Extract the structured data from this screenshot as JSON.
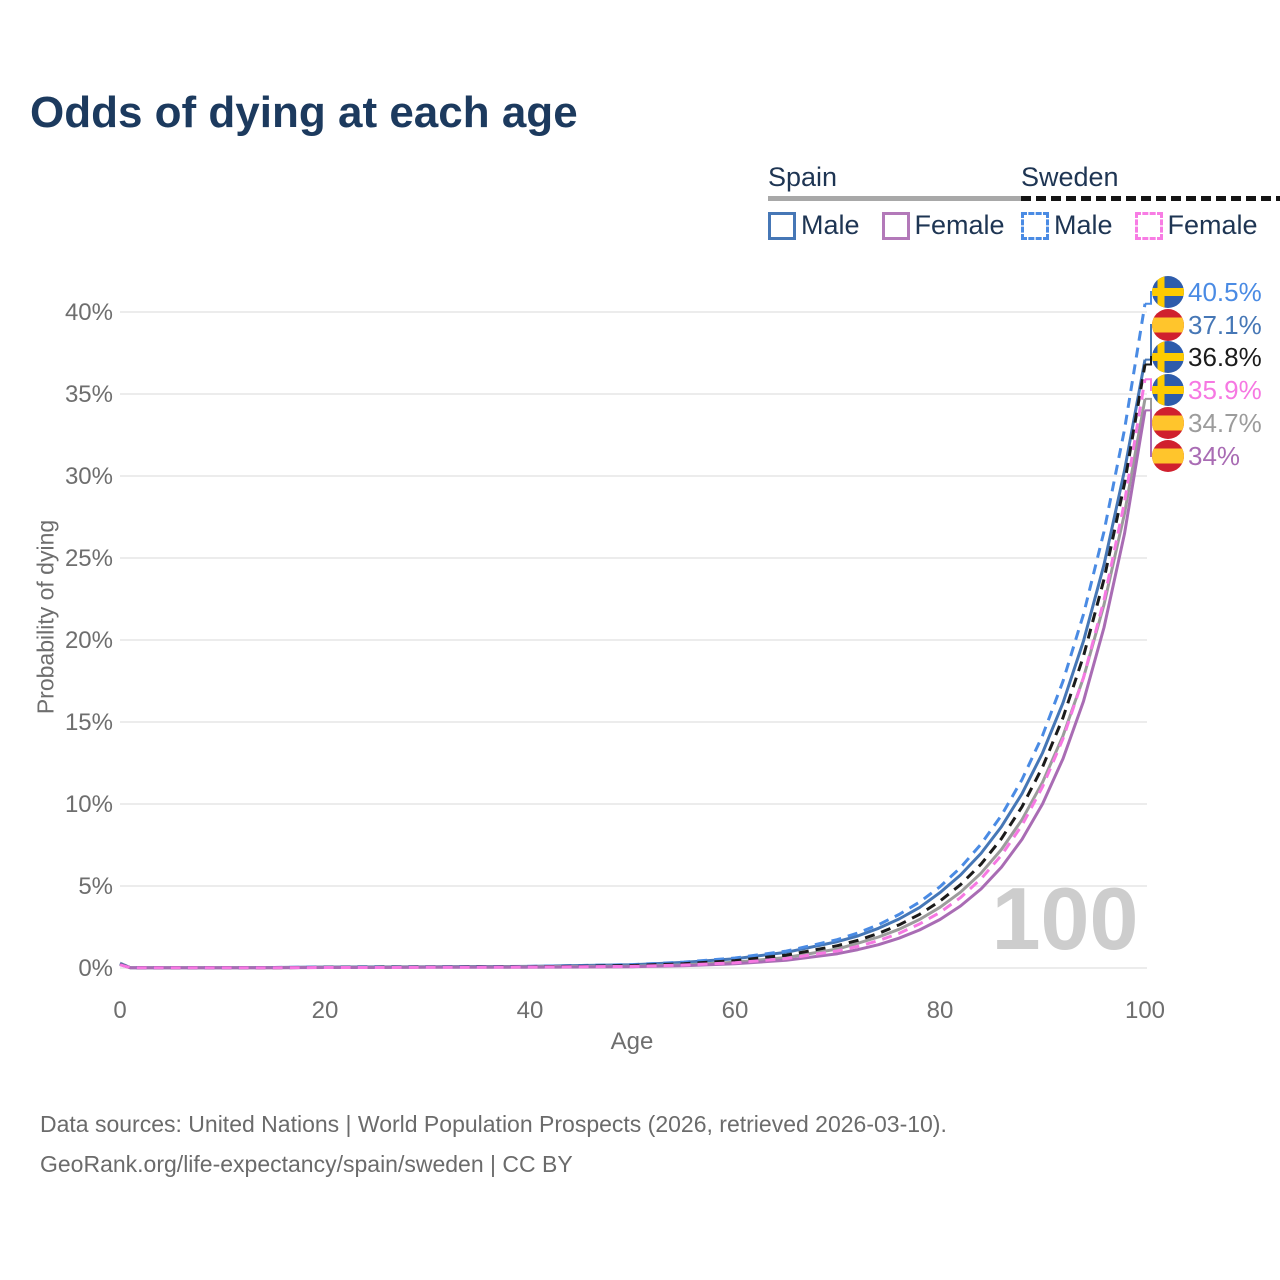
{
  "title": "Odds of dying at each age",
  "legend": {
    "spain": {
      "label": "Spain",
      "items": [
        {
          "label": "Male"
        },
        {
          "label": "Female"
        }
      ]
    },
    "sweden": {
      "label": "Sweden",
      "items": [
        {
          "label": "Male"
        },
        {
          "label": "Female"
        }
      ]
    }
  },
  "watermark_age": "100",
  "footer": {
    "line1": "Data sources: United Nations | World Population Prospects (2026, retrieved 2026-03-10).",
    "line2": "GeoRank.org/life-expectancy/spain/sweden | CC BY"
  },
  "colors": {
    "title_navy": "#1c3a5e",
    "legend_text": "#1e3553",
    "grid": "#ececec",
    "tick_text": "#6e6e6e",
    "watermark": "#cdcdcd",
    "spain_underline": "#a8a8a8",
    "sweden_underline": "#141414",
    "sweden_flag_blue": "#2e5cab",
    "sweden_flag_yellow": "#fecb00",
    "spain_flag_red": "#d0202e",
    "spain_flag_yellow": "#ffc52c"
  },
  "chart_data": {
    "type": "line",
    "title": "Odds of dying at each age",
    "xlabel": "Age",
    "ylabel": "Probability of dying",
    "xlim": [
      0,
      100
    ],
    "ylim": [
      0,
      42
    ],
    "grid": "horizontal",
    "legend_position": "top-right",
    "x_ticks": [
      "0",
      "20",
      "40",
      "60",
      "80",
      "100"
    ],
    "x_tick_values": [
      0,
      20,
      40,
      60,
      80,
      100
    ],
    "y_ticks": [
      "0%",
      "5%",
      "10%",
      "15%",
      "20%",
      "25%",
      "30%",
      "35%",
      "40%"
    ],
    "y_tick_values": [
      0,
      5,
      10,
      15,
      20,
      25,
      30,
      35,
      40
    ],
    "x": [
      0,
      1,
      5,
      10,
      15,
      20,
      25,
      30,
      35,
      40,
      45,
      50,
      55,
      60,
      65,
      70,
      72,
      74,
      76,
      78,
      80,
      82,
      84,
      86,
      88,
      90,
      92,
      94,
      96,
      98,
      100
    ],
    "series": [
      {
        "id": "sweden-male",
        "country": "Sweden",
        "sex": "Male",
        "color": "#4a8be4",
        "dash": true,
        "end_label": "40.5%",
        "end_value": 40.5,
        "flag": "sweden",
        "values": [
          0.25,
          0.02,
          0.01,
          0.01,
          0.03,
          0.06,
          0.07,
          0.07,
          0.08,
          0.1,
          0.15,
          0.21,
          0.36,
          0.61,
          1.03,
          1.73,
          2.14,
          2.64,
          3.26,
          4.02,
          4.96,
          6.12,
          7.55,
          9.31,
          11.49,
          14.17,
          17.49,
          21.57,
          26.61,
          32.83,
          40.5
        ]
      },
      {
        "id": "spain-male",
        "country": "Spain",
        "sex": "Male",
        "color": "#4677b6",
        "dash": false,
        "end_label": "37.1%",
        "end_value": 37.1,
        "flag": "spain",
        "values": [
          0.3,
          0.02,
          0.01,
          0.01,
          0.03,
          0.06,
          0.07,
          0.08,
          0.09,
          0.1,
          0.15,
          0.2,
          0.34,
          0.57,
          0.96,
          1.61,
          1.96,
          2.42,
          2.99,
          3.68,
          4.6,
          5.67,
          6.99,
          8.62,
          10.63,
          13.11,
          16.17,
          19.94,
          24.59,
          30.33,
          37.1
        ]
      },
      {
        "id": "sweden-both",
        "country": "Sweden",
        "sex": "Both",
        "color": "#1b1b1b",
        "dash": true,
        "end_label": "36.8%",
        "end_value": 36.8,
        "flag": "sweden",
        "values": [
          0.22,
          0.02,
          0.01,
          0.01,
          0.02,
          0.04,
          0.05,
          0.06,
          0.07,
          0.08,
          0.11,
          0.15,
          0.26,
          0.45,
          0.78,
          1.36,
          1.69,
          2.11,
          2.63,
          3.27,
          4.08,
          5.08,
          6.33,
          7.89,
          9.83,
          12.25,
          15.26,
          19.02,
          23.7,
          29.53,
          36.8
        ]
      },
      {
        "id": "sweden-female",
        "country": "Sweden",
        "sex": "Female",
        "color": "#f678e2",
        "dash": true,
        "end_label": "35.9%",
        "end_value": 35.9,
        "flag": "sweden",
        "values": [
          0.2,
          0.02,
          0.01,
          0.01,
          0.02,
          0.03,
          0.03,
          0.04,
          0.05,
          0.06,
          0.08,
          0.1,
          0.18,
          0.32,
          0.58,
          1.04,
          1.32,
          1.67,
          2.11,
          2.68,
          3.39,
          4.29,
          5.43,
          6.88,
          8.71,
          11.04,
          13.98,
          17.71,
          22.43,
          28.41,
          35.9
        ]
      },
      {
        "id": "spain-both",
        "country": "Spain",
        "sex": "Both",
        "color": "#9c9c9c",
        "dash": false,
        "end_label": "34.7%",
        "end_value": 34.7,
        "flag": "spain",
        "values": [
          0.28,
          0.02,
          0.01,
          0.01,
          0.02,
          0.04,
          0.05,
          0.06,
          0.07,
          0.08,
          0.1,
          0.11,
          0.19,
          0.35,
          0.64,
          1.16,
          1.51,
          1.89,
          2.36,
          2.96,
          3.7,
          4.62,
          5.78,
          7.23,
          9.04,
          11.32,
          14.16,
          17.71,
          22.15,
          27.71,
          34.7
        ]
      },
      {
        "id": "spain-female",
        "country": "Spain",
        "sex": "Female",
        "color": "#a96cb4",
        "dash": false,
        "end_label": "34%",
        "end_value": 34.0,
        "flag": "spain",
        "values": [
          0.24,
          0.02,
          0.01,
          0.01,
          0.02,
          0.03,
          0.03,
          0.04,
          0.04,
          0.05,
          0.06,
          0.08,
          0.14,
          0.26,
          0.47,
          0.87,
          1.12,
          1.42,
          1.82,
          2.32,
          2.96,
          3.78,
          4.82,
          6.15,
          7.84,
          10.0,
          12.76,
          16.27,
          20.76,
          26.48,
          34.0
        ]
      }
    ]
  }
}
